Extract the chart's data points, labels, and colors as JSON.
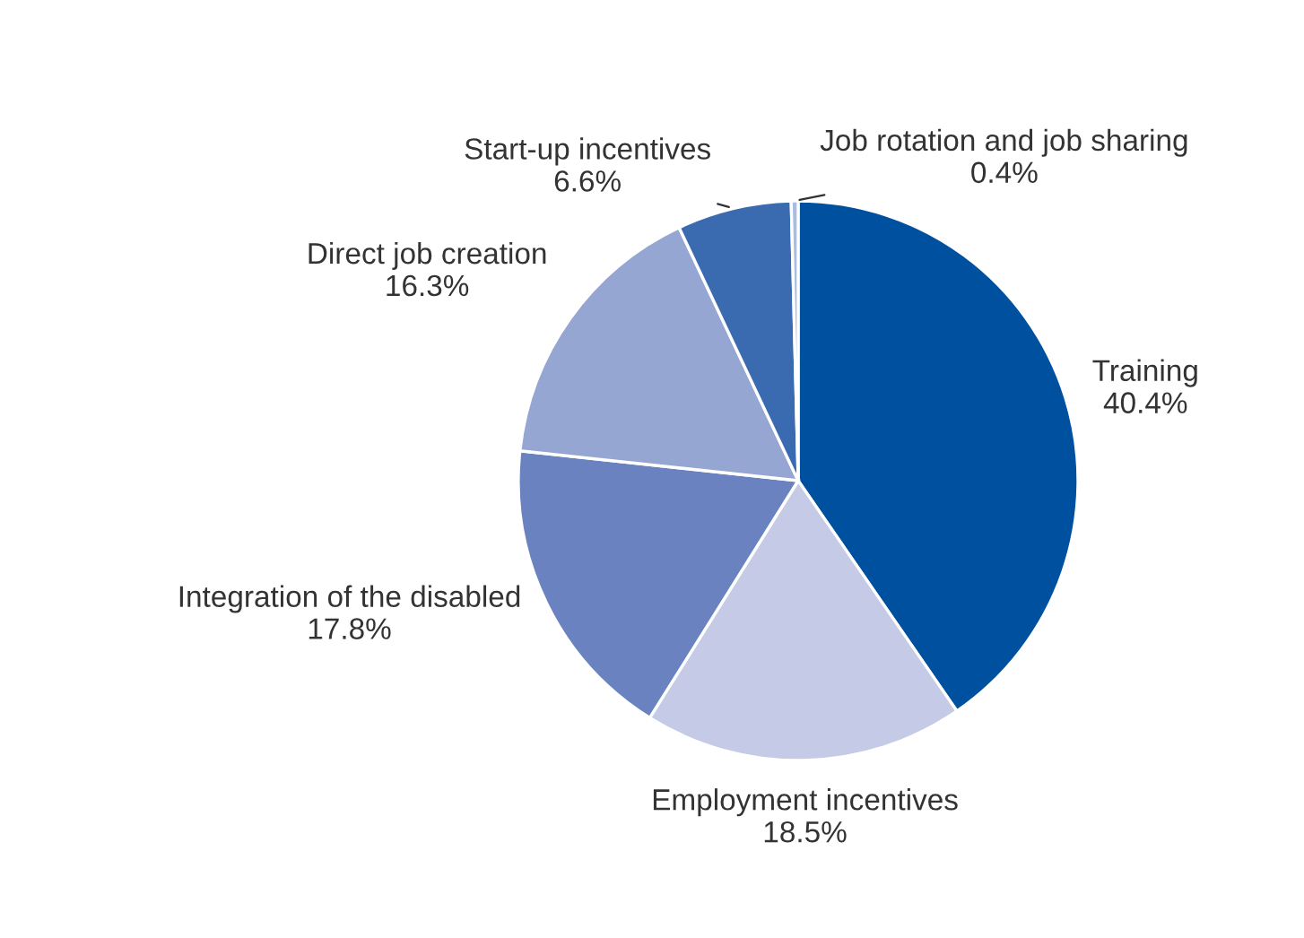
{
  "chart_data": {
    "type": "pie",
    "categories": [
      "Training",
      "Employment incentives",
      "Integration of the disabled",
      "Direct job creation",
      "Start-up incentives",
      "Job rotation and job sharing"
    ],
    "values": [
      40.4,
      18.5,
      17.8,
      16.3,
      6.6,
      0.4
    ],
    "value_labels": [
      "40.4%",
      "18.5%",
      "17.8%",
      "16.3%",
      "6.6%",
      "0.4%"
    ],
    "colors": [
      "#0050a0",
      "#c5cae6",
      "#6a82c0",
      "#96a6d2",
      "#3a6ab0",
      "#a9bde0"
    ],
    "legend": false
  }
}
